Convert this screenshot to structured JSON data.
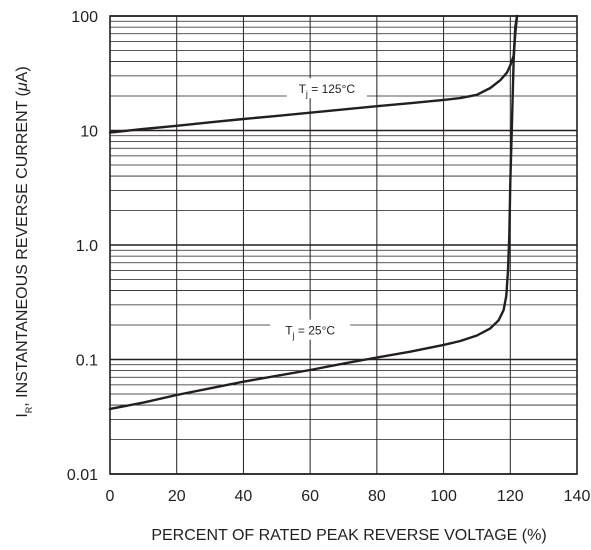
{
  "chart_data": {
    "type": "line",
    "title": "",
    "xlabel": "PERCENT OF RATED PEAK REVERSE VOLTAGE (%)",
    "ylabel": {
      "symbol": "I",
      "subscript": "R",
      "text": ", INSTANTANEOUS REVERSE CURRENT (",
      "mu": "μ",
      "unit_end": "A)"
    },
    "x_scale": "linear",
    "y_scale": "log",
    "xlim": [
      0,
      140
    ],
    "ylim": [
      0.01,
      100
    ],
    "x_ticks": [
      "0",
      "20",
      "40",
      "60",
      "80",
      "100",
      "120",
      "140"
    ],
    "y_ticks": [
      {
        "value": 100,
        "label": "100"
      },
      {
        "value": 10,
        "label": "10"
      },
      {
        "value": 1,
        "label": "1.0"
      },
      {
        "value": 0.1,
        "label": "0.1"
      },
      {
        "value": 0.01,
        "label": "0.01"
      }
    ],
    "grid": true,
    "series": [
      {
        "label": {
          "prefix": "T",
          "sub": "j",
          "suffix": " = 125°C"
        },
        "label_at": {
          "x": 65,
          "y": 22.5
        },
        "x": [
          0,
          10,
          20,
          30,
          40,
          50,
          60,
          70,
          80,
          90,
          100,
          105,
          110,
          114,
          117,
          119,
          120,
          121,
          121.5,
          122
        ],
        "y": [
          9.6,
          10.3,
          11.0,
          11.8,
          12.6,
          13.4,
          14.3,
          15.3,
          16.3,
          17.3,
          18.5,
          19.2,
          20.5,
          23.5,
          27.5,
          32,
          37,
          45,
          70,
          100
        ]
      },
      {
        "label": {
          "prefix": "T",
          "sub": "j",
          "suffix": " = 25°C"
        },
        "label_at": {
          "x": 60,
          "y": 0.175
        },
        "x": [
          0,
          10,
          20,
          30,
          40,
          50,
          60,
          70,
          80,
          90,
          100,
          105,
          110,
          114,
          116.5,
          118,
          118.8,
          119.3,
          119.7,
          120,
          120.5,
          121,
          121.5,
          122
        ],
        "y": [
          0.037,
          0.042,
          0.049,
          0.056,
          0.064,
          0.072,
          0.081,
          0.092,
          0.104,
          0.117,
          0.134,
          0.145,
          0.162,
          0.187,
          0.22,
          0.27,
          0.36,
          0.6,
          1.2,
          3.5,
          12,
          40,
          80,
          100
        ]
      }
    ]
  }
}
